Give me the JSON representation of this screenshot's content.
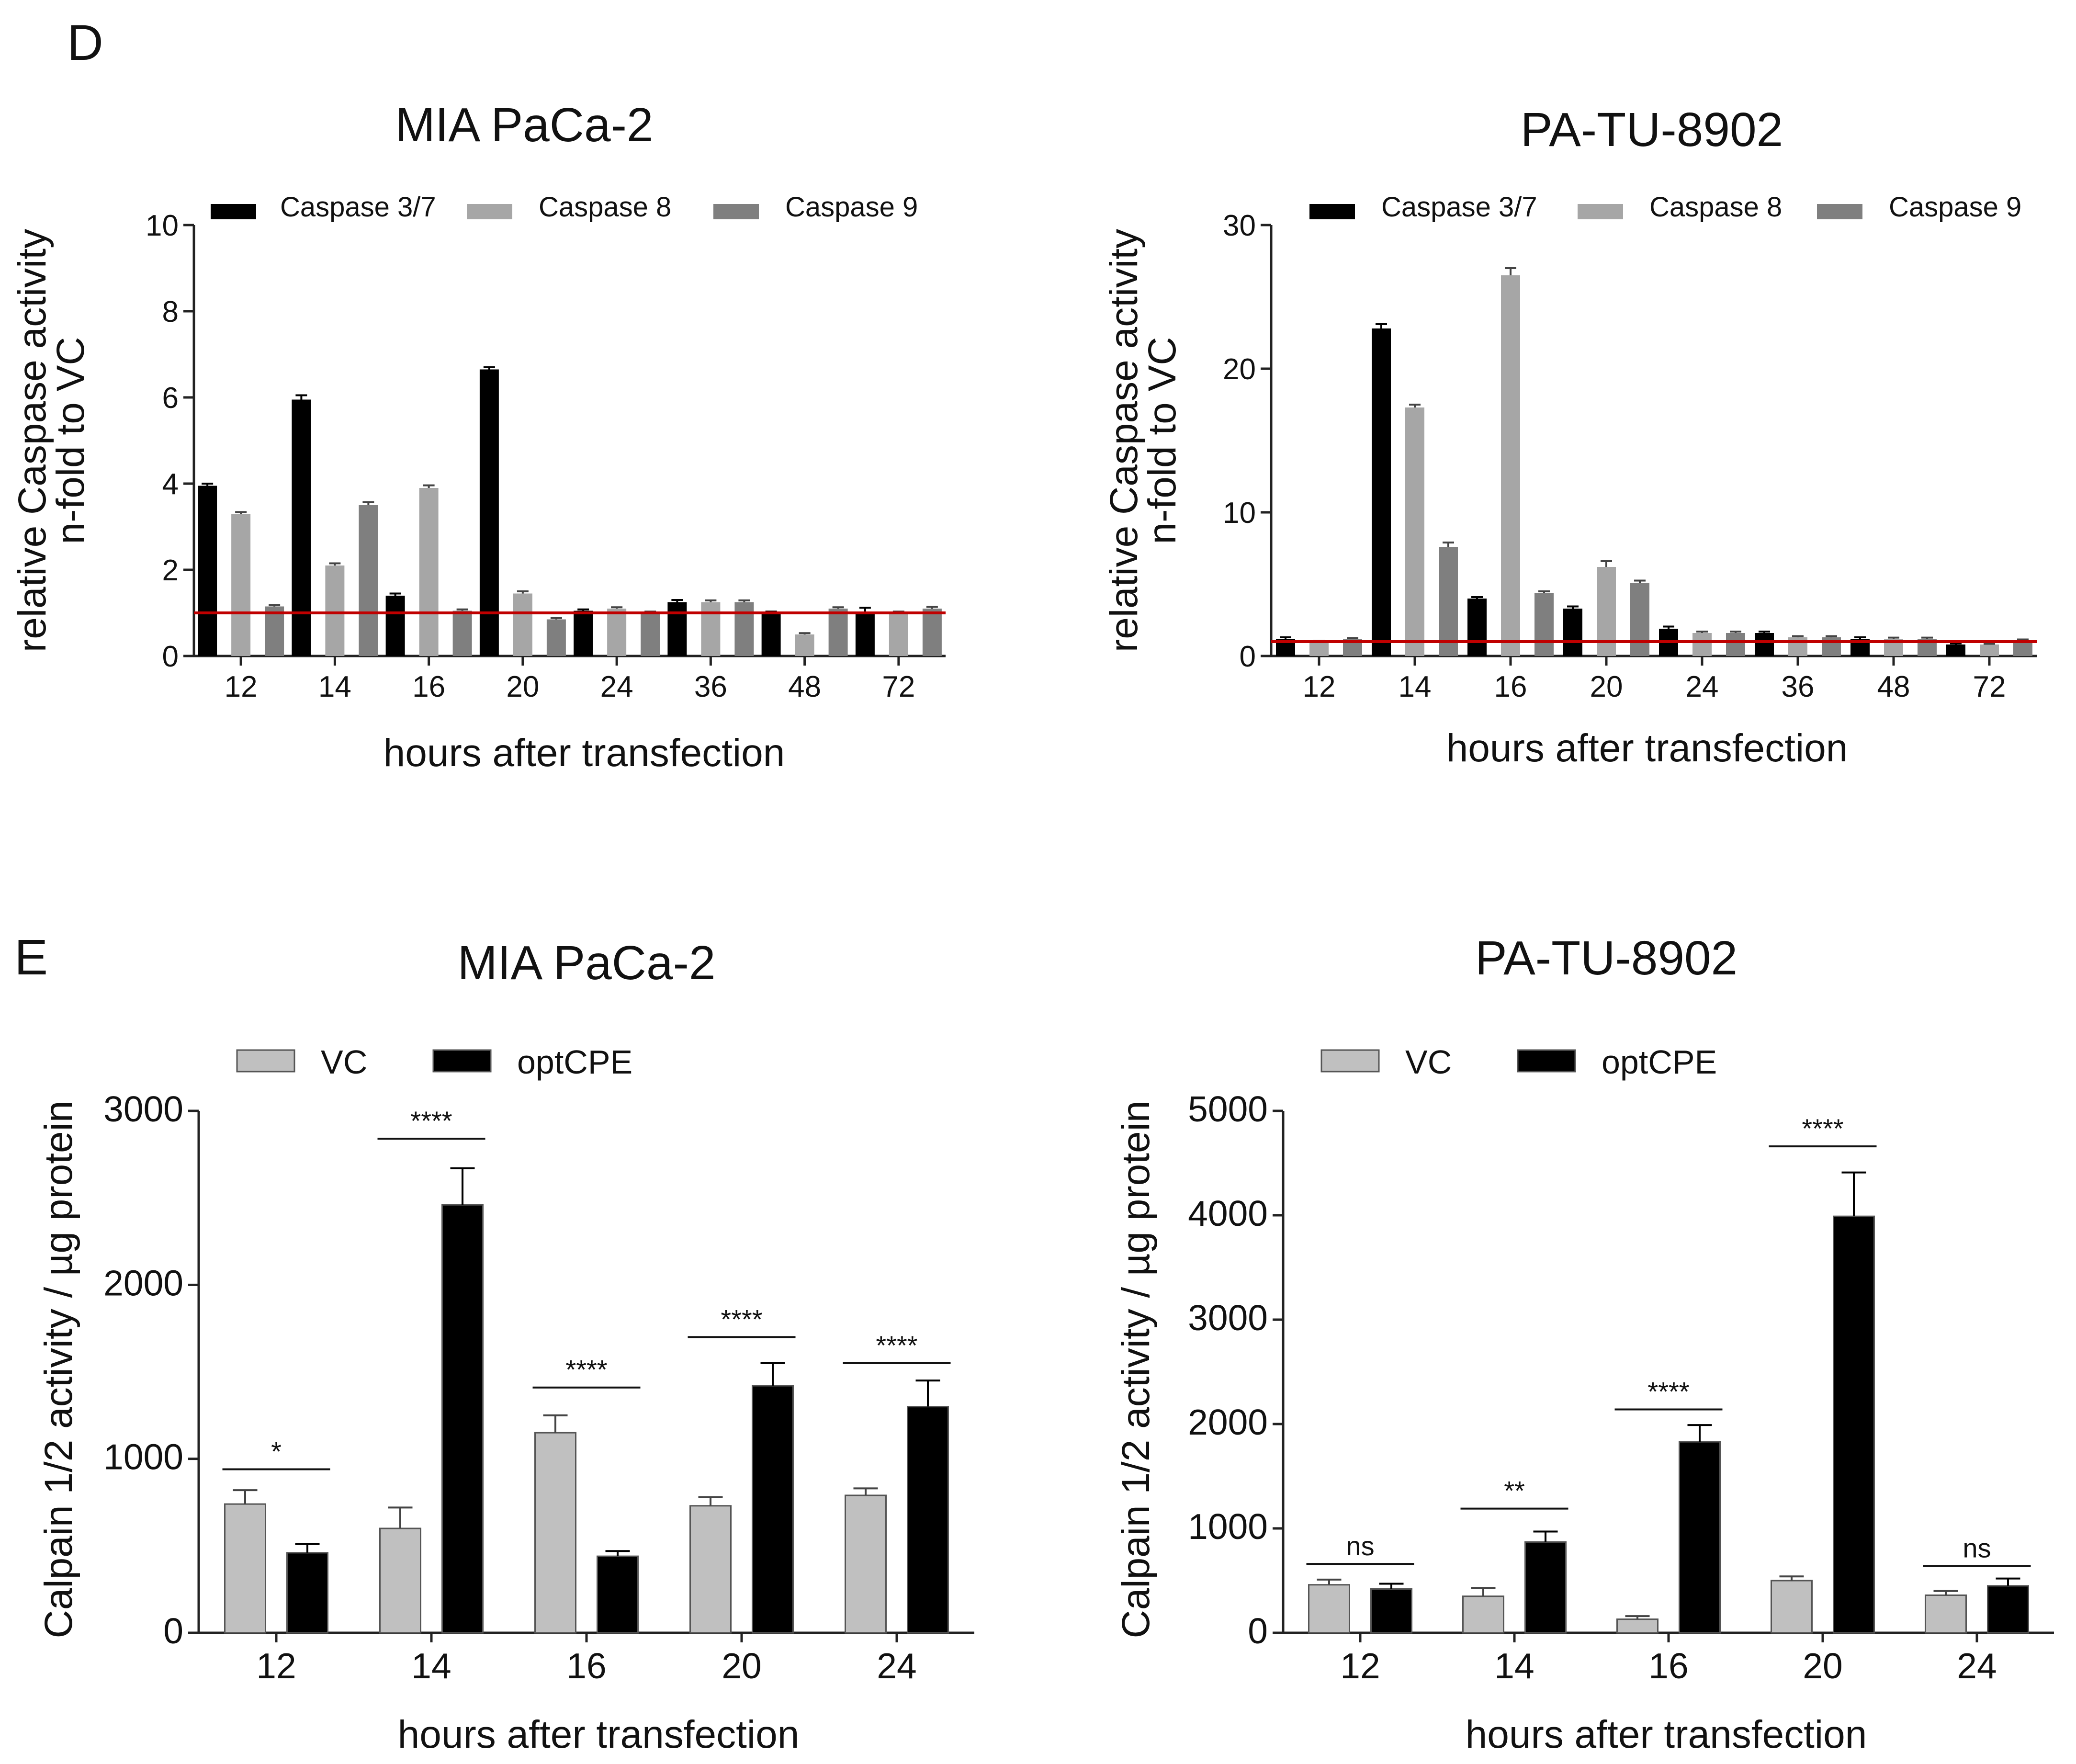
{
  "panels": {
    "D": {
      "letter": "D"
    },
    "E": {
      "letter": "E"
    }
  },
  "colors": {
    "caspase_37": "#000000",
    "caspase_8": "#a6a6a6",
    "caspase_9": "#7f7f7f",
    "vc": "#c0c0c0",
    "optcpe": "#000000",
    "reference_line": "#c00000"
  },
  "chart_data": [
    {
      "id": "D1",
      "type": "bar",
      "title": "MIA PaCa-2",
      "xlabel": "hours after transfection",
      "ylabel": [
        "relative Caspase  activity",
        "n-fold to VC"
      ],
      "categories": [
        "12",
        "14",
        "16",
        "20",
        "24",
        "36",
        "48",
        "72"
      ],
      "ylim": [
        0,
        10
      ],
      "yticks": [
        0,
        2,
        4,
        6,
        8,
        10
      ],
      "reference_line": 1,
      "legend_position": "top",
      "series": [
        {
          "name": "Caspase 3/7",
          "color": "#000000",
          "values": [
            3.95,
            5.95,
            1.4,
            6.65,
            1.05,
            1.25,
            1.0,
            1.0
          ],
          "errors": [
            0.05,
            0.1,
            0.05,
            0.05,
            0.03,
            0.05,
            0.03,
            0.12
          ]
        },
        {
          "name": "Caspase 8",
          "color": "#a6a6a6",
          "values": [
            3.3,
            2.1,
            3.9,
            1.45,
            1.1,
            1.25,
            0.5,
            1.0
          ],
          "errors": [
            0.04,
            0.05,
            0.06,
            0.05,
            0.03,
            0.04,
            0.03,
            0.03
          ]
        },
        {
          "name": "Caspase 9",
          "color": "#7f7f7f",
          "values": [
            1.15,
            3.5,
            1.05,
            0.85,
            1.0,
            1.25,
            1.1,
            1.1
          ],
          "errors": [
            0.03,
            0.07,
            0.03,
            0.03,
            0.03,
            0.04,
            0.03,
            0.04
          ]
        }
      ]
    },
    {
      "id": "D2",
      "type": "bar",
      "title": "PA-TU-8902",
      "xlabel": "hours after transfection",
      "ylabel": [
        "relative Caspase activity",
        "n-fold to VC"
      ],
      "categories": [
        "12",
        "14",
        "16",
        "20",
        "24",
        "36",
        "48",
        "72"
      ],
      "ylim": [
        0,
        30
      ],
      "yticks": [
        0,
        10,
        20,
        30
      ],
      "reference_line": 1,
      "legend_position": "top",
      "series": [
        {
          "name": "Caspase 3/7",
          "color": "#000000",
          "values": [
            1.2,
            22.8,
            4.0,
            3.3,
            1.9,
            1.6,
            1.2,
            0.8
          ],
          "errors": [
            0.1,
            0.3,
            0.1,
            0.15,
            0.15,
            0.1,
            0.1,
            0.08
          ]
        },
        {
          "name": "Caspase 8",
          "color": "#a6a6a6",
          "values": [
            1.0,
            17.3,
            26.5,
            6.2,
            1.6,
            1.3,
            1.2,
            0.8
          ],
          "errors": [
            0.05,
            0.2,
            0.5,
            0.4,
            0.1,
            0.08,
            0.08,
            0.05
          ]
        },
        {
          "name": "Caspase 9",
          "color": "#7f7f7f",
          "values": [
            1.2,
            7.6,
            4.4,
            5.1,
            1.6,
            1.3,
            1.2,
            1.1
          ],
          "errors": [
            0.05,
            0.3,
            0.1,
            0.15,
            0.1,
            0.08,
            0.08,
            0.05
          ]
        }
      ]
    },
    {
      "id": "E1",
      "type": "bar",
      "title": "MIA PaCa-2",
      "xlabel": "hours after transfection",
      "ylabel": [
        "Calpain 1/2 activity / µg protein"
      ],
      "categories": [
        "12",
        "14",
        "16",
        "20",
        "24"
      ],
      "ylim": [
        0,
        3000
      ],
      "yticks": [
        0,
        1000,
        2000,
        3000
      ],
      "legend_position": "top",
      "series": [
        {
          "name": "VC",
          "color": "#c0c0c0",
          "values": [
            740,
            600,
            1150,
            730,
            790
          ],
          "errors": [
            80,
            120,
            100,
            50,
            40
          ]
        },
        {
          "name": "optCPE",
          "color": "#000000",
          "values": [
            460,
            2460,
            440,
            1420,
            1300
          ],
          "errors": [
            50,
            210,
            30,
            130,
            150
          ]
        }
      ],
      "significance": [
        {
          "label": "*",
          "value": 940
        },
        {
          "label": "****",
          "value": 2840
        },
        {
          "label": "****",
          "value": 1410
        },
        {
          "label": "****",
          "value": 1700
        },
        {
          "label": "****",
          "value": 1550
        }
      ]
    },
    {
      "id": "E2",
      "type": "bar",
      "title": "PA-TU-8902",
      "xlabel": "hours after transfection",
      "ylabel": [
        "Calpain 1/2 activity / µg protein"
      ],
      "categories": [
        "12",
        "14",
        "16",
        "20",
        "24"
      ],
      "ylim": [
        0,
        5000
      ],
      "yticks": [
        0,
        1000,
        2000,
        3000,
        4000,
        5000
      ],
      "legend_position": "top",
      "series": [
        {
          "name": "VC",
          "color": "#c0c0c0",
          "values": [
            460,
            350,
            130,
            500,
            360
          ],
          "errors": [
            50,
            80,
            30,
            40,
            40
          ]
        },
        {
          "name": "optCPE",
          "color": "#000000",
          "values": [
            420,
            870,
            1830,
            3990,
            450
          ],
          "errors": [
            50,
            100,
            160,
            420,
            70
          ]
        }
      ],
      "significance": [
        {
          "label": "ns",
          "value": 660
        },
        {
          "label": "**",
          "value": 1190
        },
        {
          "label": "****",
          "value": 2140
        },
        {
          "label": "****",
          "value": 4660
        },
        {
          "label": "ns",
          "value": 640
        }
      ]
    }
  ]
}
